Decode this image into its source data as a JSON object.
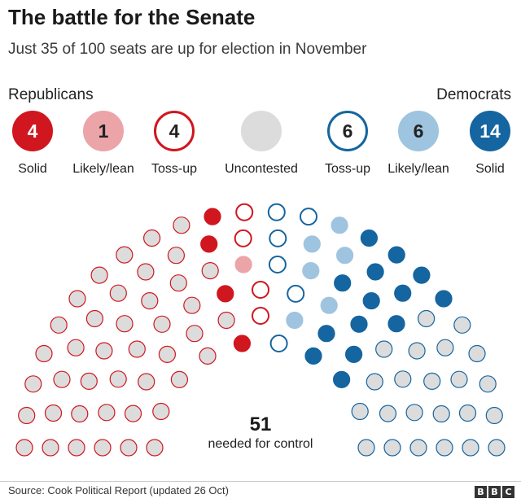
{
  "header": {
    "title": "The battle for the Senate",
    "subtitle": "Just 35 of 100 seats are up for election in November"
  },
  "groups": {
    "rep": "Republicans",
    "dem": "Democrats"
  },
  "categories": [
    {
      "count": "4",
      "label": "Solid",
      "fill": "#d0161e",
      "stroke": "#d0161e",
      "text": "#ffffff"
    },
    {
      "count": "1",
      "label": "Likely/lean",
      "fill": "#eba4a8",
      "stroke": "#eba4a8",
      "text": "#222222"
    },
    {
      "count": "4",
      "label": "Toss-up",
      "fill": "#ffffff",
      "stroke": "#d0161e",
      "text": "#222222"
    },
    {
      "count": "",
      "label": "Uncontested",
      "fill": "#dcdcdc",
      "stroke": "#dcdcdc",
      "text": "#222222"
    },
    {
      "count": "6",
      "label": "Toss-up",
      "fill": "#ffffff",
      "stroke": "#1565a0",
      "text": "#222222"
    },
    {
      "count": "6",
      "label": "Likely/lean",
      "fill": "#9fc4df",
      "stroke": "#9fc4df",
      "text": "#222222"
    },
    {
      "count": "14",
      "label": "Solid",
      "fill": "#1565a0",
      "stroke": "#1565a0",
      "text": "#ffffff"
    }
  ],
  "chart_data": {
    "type": "parliament",
    "total_seats": 100,
    "seats_up_for_election": 35,
    "series": [
      {
        "name": "Solid",
        "party": "Republicans",
        "values": [
          4
        ],
        "color": "#d0161e",
        "style": "filled"
      },
      {
        "name": "Likely/lean",
        "party": "Republicans",
        "values": [
          1
        ],
        "color": "#eba4a8",
        "style": "filled"
      },
      {
        "name": "Toss-up",
        "party": "Republicans",
        "values": [
          4
        ],
        "color": "#d0161e",
        "style": "outline"
      },
      {
        "name": "Toss-up",
        "party": "Democrats",
        "values": [
          6
        ],
        "color": "#1565a0",
        "style": "outline"
      },
      {
        "name": "Likely/lean",
        "party": "Democrats",
        "values": [
          6
        ],
        "color": "#9fc4df",
        "style": "filled"
      },
      {
        "name": "Solid",
        "party": "Democrats",
        "values": [
          14
        ],
        "color": "#1565a0",
        "style": "filled"
      }
    ],
    "uncontested": {
      "total": 65,
      "republicans": 42,
      "democrats": 23,
      "fill": "#dcdcdc",
      "stroke_rep": "#d0161e",
      "stroke_dem": "#1565a0"
    },
    "majority": {
      "value": "51",
      "label": "needed for control"
    }
  },
  "footer": {
    "source": "Source: Cook Political Report (updated 26 Oct)",
    "logo": [
      "B",
      "B",
      "C"
    ]
  }
}
